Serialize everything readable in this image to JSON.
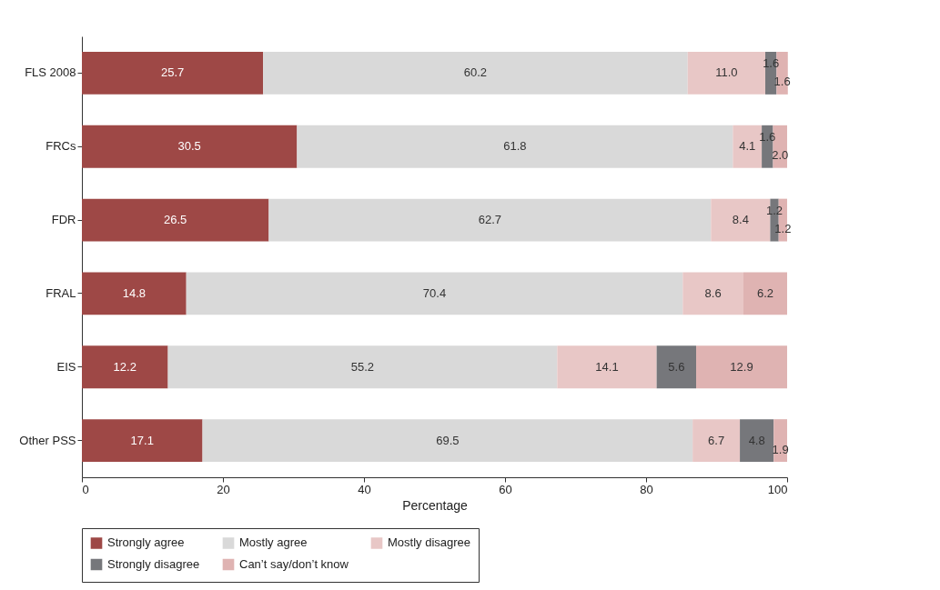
{
  "chart_data": {
    "type": "bar",
    "orientation": "horizontal",
    "stacked": true,
    "xlabel": "Percentage",
    "categories": [
      "FLS 2008",
      "FRCs",
      "FDR",
      "FRAL",
      "EIS",
      "Other PSS"
    ],
    "series": [
      {
        "name": "Strongly agree",
        "color": "#9e4846",
        "values": [
          25.7,
          30.5,
          26.5,
          14.8,
          12.2,
          17.1
        ],
        "value_labels": [
          "25.7",
          "30.5",
          "26.5",
          "14.8",
          "12.2",
          "17.1"
        ]
      },
      {
        "name": "Mostly agree",
        "color": "#d9d9d9",
        "values": [
          60.2,
          61.8,
          62.7,
          70.4,
          55.2,
          69.5
        ],
        "value_labels": [
          "60.2",
          "61.8",
          "62.7",
          "70.4",
          "55.2",
          "69.5"
        ]
      },
      {
        "name": "Mostly disagree",
        "color": "#e8c7c6",
        "values": [
          11.0,
          4.1,
          8.4,
          8.6,
          14.1,
          6.7
        ],
        "value_labels": [
          "11.0",
          "4.1",
          "8.4",
          "8.6",
          "14.1",
          "6.7"
        ]
      },
      {
        "name": "Strongly disagree",
        "color": "#76777b",
        "values": [
          1.6,
          1.6,
          1.2,
          null,
          5.6,
          4.8
        ],
        "value_labels": [
          "1.6",
          "1.6",
          "1.2",
          null,
          "5.6",
          "4.8"
        ]
      },
      {
        "name": "Can’t say/don’t know",
        "color": "#dfb3b2",
        "values": [
          1.6,
          2.0,
          1.2,
          6.2,
          12.9,
          1.9
        ],
        "value_labels": [
          "1.6",
          "2.0",
          "1.2",
          "6.2",
          "12.9",
          "1.9"
        ]
      }
    ],
    "xlim": [
      0,
      100
    ],
    "xticks": [
      0,
      20,
      40,
      60,
      80,
      100
    ],
    "grid": false,
    "legend": "bottom"
  }
}
